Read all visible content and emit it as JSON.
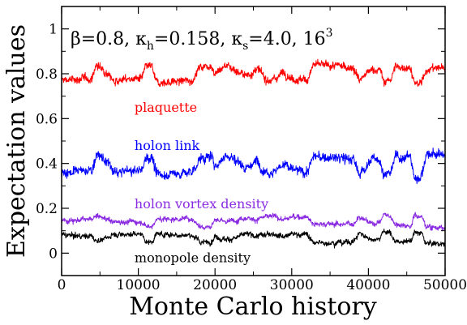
{
  "chart_data": {
    "type": "scatter",
    "title": "",
    "parameters_text": {
      "beta_symbol": "β",
      "beta_value": "=0.8, ",
      "kappa_symbol": "κ",
      "kappa_h_sub": "h",
      "kappa_h_value": "=0.158, ",
      "kappa_s_sub": "s",
      "kappa_s_value": "=4.0, 16",
      "volume_exponent": "3"
    },
    "xlabel": "Monte Carlo history",
    "ylabel": "Expectation values",
    "xlim": [
      0,
      50000
    ],
    "ylim": [
      -0.1,
      1.1
    ],
    "x_ticks": [
      0,
      10000,
      20000,
      30000,
      40000,
      50000
    ],
    "x_tick_labels": [
      "0",
      "10000",
      "20000",
      "30000",
      "40000",
      "50000"
    ],
    "y_ticks": [
      0,
      0.2,
      0.4,
      0.6,
      0.8,
      1.0
    ],
    "y_tick_labels": [
      "0",
      "0.2",
      "0.4",
      "0.6",
      "0.8",
      "1"
    ],
    "grid": false,
    "legend": "inline labels below each series",
    "series": [
      {
        "name": "plaquette",
        "color": "#ff0000",
        "label_anchor": [
          9500,
          0.63
        ],
        "noise": 0.018,
        "segments": [
          [
            0,
            0.77
          ],
          [
            4000,
            0.78
          ],
          [
            4500,
            0.84
          ],
          [
            6200,
            0.8
          ],
          [
            6600,
            0.77
          ],
          [
            10500,
            0.78
          ],
          [
            11000,
            0.83
          ],
          [
            11800,
            0.83
          ],
          [
            12300,
            0.76
          ],
          [
            17000,
            0.77
          ],
          [
            18000,
            0.83
          ],
          [
            19500,
            0.84
          ],
          [
            20000,
            0.8
          ],
          [
            21500,
            0.84
          ],
          [
            23000,
            0.81
          ],
          [
            24000,
            0.79
          ],
          [
            25500,
            0.82
          ],
          [
            26500,
            0.78
          ],
          [
            27500,
            0.77
          ],
          [
            29000,
            0.81
          ],
          [
            30000,
            0.78
          ],
          [
            32000,
            0.77
          ],
          [
            32800,
            0.84
          ],
          [
            38000,
            0.83
          ],
          [
            38800,
            0.77
          ],
          [
            39500,
            0.79
          ],
          [
            40500,
            0.82
          ],
          [
            41500,
            0.82
          ],
          [
            42000,
            0.76
          ],
          [
            43000,
            0.78
          ],
          [
            43500,
            0.83
          ],
          [
            45500,
            0.83
          ],
          [
            46000,
            0.75
          ],
          [
            47000,
            0.76
          ],
          [
            47500,
            0.82
          ],
          [
            50000,
            0.83
          ]
        ]
      },
      {
        "name": "holon link",
        "color": "#0000ff",
        "label_anchor": [
          9500,
          0.46
        ],
        "noise": 0.022,
        "segments": [
          [
            0,
            0.36
          ],
          [
            4000,
            0.37
          ],
          [
            4500,
            0.44
          ],
          [
            6200,
            0.4
          ],
          [
            6600,
            0.36
          ],
          [
            10500,
            0.37
          ],
          [
            11000,
            0.43
          ],
          [
            11800,
            0.43
          ],
          [
            12300,
            0.35
          ],
          [
            17000,
            0.36
          ],
          [
            18000,
            0.42
          ],
          [
            19500,
            0.43
          ],
          [
            20000,
            0.39
          ],
          [
            21500,
            0.44
          ],
          [
            23000,
            0.41
          ],
          [
            24000,
            0.38
          ],
          [
            25500,
            0.41
          ],
          [
            26500,
            0.37
          ],
          [
            27500,
            0.36
          ],
          [
            29000,
            0.4
          ],
          [
            30000,
            0.37
          ],
          [
            32000,
            0.36
          ],
          [
            32800,
            0.43
          ],
          [
            38000,
            0.42
          ],
          [
            38800,
            0.35
          ],
          [
            39500,
            0.38
          ],
          [
            40500,
            0.42
          ],
          [
            41500,
            0.42
          ],
          [
            42000,
            0.35
          ],
          [
            43000,
            0.36
          ],
          [
            43500,
            0.43
          ],
          [
            45500,
            0.43
          ],
          [
            46000,
            0.33
          ],
          [
            47000,
            0.35
          ],
          [
            47500,
            0.44
          ],
          [
            50000,
            0.44
          ]
        ]
      },
      {
        "name": "holon vortex density",
        "color": "#8a2be2",
        "label_anchor": [
          9500,
          0.2
        ],
        "noise": 0.012,
        "segments": [
          [
            0,
            0.145
          ],
          [
            4000,
            0.15
          ],
          [
            4500,
            0.165
          ],
          [
            6200,
            0.15
          ],
          [
            6600,
            0.14
          ],
          [
            10500,
            0.14
          ],
          [
            11000,
            0.12
          ],
          [
            11800,
            0.12
          ],
          [
            12300,
            0.15
          ],
          [
            17000,
            0.155
          ],
          [
            18000,
            0.12
          ],
          [
            19500,
            0.12
          ],
          [
            20000,
            0.15
          ],
          [
            21500,
            0.14
          ],
          [
            23000,
            0.15
          ],
          [
            24000,
            0.16
          ],
          [
            25500,
            0.15
          ],
          [
            26500,
            0.16
          ],
          [
            27500,
            0.165
          ],
          [
            29000,
            0.15
          ],
          [
            30000,
            0.16
          ],
          [
            32000,
            0.165
          ],
          [
            32800,
            0.13
          ],
          [
            38000,
            0.13
          ],
          [
            38800,
            0.165
          ],
          [
            39500,
            0.15
          ],
          [
            40500,
            0.13
          ],
          [
            41500,
            0.14
          ],
          [
            42000,
            0.175
          ],
          [
            43000,
            0.16
          ],
          [
            43500,
            0.13
          ],
          [
            45500,
            0.12
          ],
          [
            46000,
            0.17
          ],
          [
            47000,
            0.16
          ],
          [
            47500,
            0.12
          ],
          [
            50000,
            0.11
          ]
        ]
      },
      {
        "name": "monopole density",
        "color": "#000000",
        "label_anchor": [
          9500,
          -0.04
        ],
        "noise": 0.012,
        "segments": [
          [
            0,
            0.08
          ],
          [
            4000,
            0.075
          ],
          [
            4500,
            0.055
          ],
          [
            6200,
            0.07
          ],
          [
            6600,
            0.085
          ],
          [
            10500,
            0.085
          ],
          [
            11000,
            0.05
          ],
          [
            11800,
            0.05
          ],
          [
            12300,
            0.085
          ],
          [
            17000,
            0.08
          ],
          [
            18000,
            0.05
          ],
          [
            19500,
            0.05
          ],
          [
            20000,
            0.075
          ],
          [
            21500,
            0.06
          ],
          [
            23000,
            0.07
          ],
          [
            24000,
            0.085
          ],
          [
            25500,
            0.075
          ],
          [
            26500,
            0.08
          ],
          [
            27500,
            0.09
          ],
          [
            29000,
            0.075
          ],
          [
            30000,
            0.085
          ],
          [
            32000,
            0.085
          ],
          [
            32800,
            0.045
          ],
          [
            38000,
            0.05
          ],
          [
            38800,
            0.09
          ],
          [
            39500,
            0.075
          ],
          [
            40500,
            0.06
          ],
          [
            41500,
            0.07
          ],
          [
            42000,
            0.1
          ],
          [
            43000,
            0.085
          ],
          [
            43500,
            0.05
          ],
          [
            45500,
            0.05
          ],
          [
            46000,
            0.095
          ],
          [
            47000,
            0.085
          ],
          [
            47500,
            0.045
          ],
          [
            50000,
            0.04
          ]
        ]
      }
    ]
  }
}
